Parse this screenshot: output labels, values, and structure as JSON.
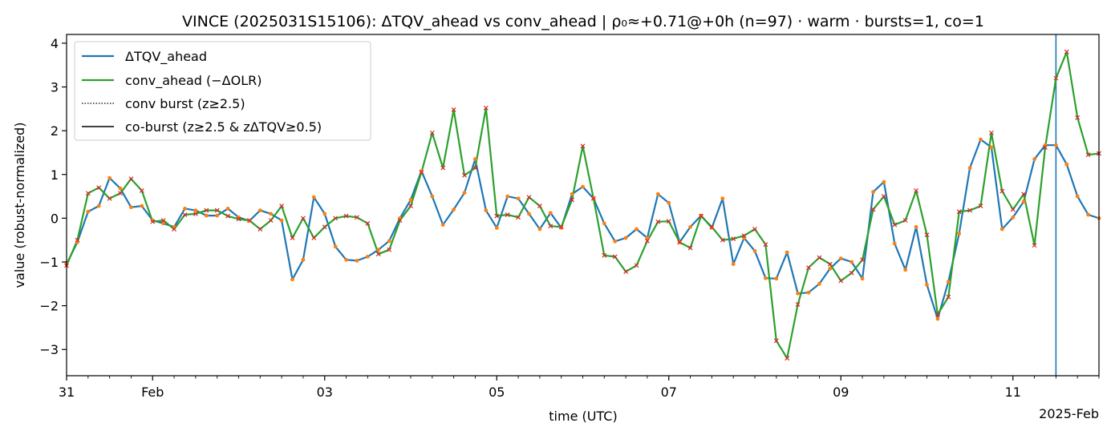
{
  "chart_data": {
    "type": "line",
    "title": "VINCE (2025031S15106): ΔTQV_ahead vs conv_ahead | ρ₀≈+0.71@+0h (n=97) · warm · bursts=1, co=1",
    "xlabel": "time (UTC)",
    "ylabel": "value (robust-normalized)",
    "x_offset_label": "2025-Feb",
    "x_start": "2025-01-31T00:00",
    "x_step_hours": 3,
    "x_ticks": [
      {
        "label": "31",
        "time": "2025-01-31"
      },
      {
        "label": "Feb",
        "time": "2025-02-01"
      },
      {
        "label": "03",
        "time": "2025-02-03"
      },
      {
        "label": "05",
        "time": "2025-02-05"
      },
      {
        "label": "07",
        "time": "2025-02-07"
      },
      {
        "label": "09",
        "time": "2025-02-09"
      },
      {
        "label": "11",
        "time": "2025-02-11"
      }
    ],
    "xlim": [
      "2025-01-31T00:00",
      "2025-02-12T00:00"
    ],
    "ylim": [
      -3.6,
      4.2
    ],
    "y_ticks": [
      4,
      3,
      2,
      1,
      0,
      -1,
      -2,
      -3
    ],
    "y_tick_labels": [
      "4",
      "3",
      "2",
      "1",
      "0",
      "−1",
      "−2",
      "−3"
    ],
    "legend_position": "top-left",
    "legend": [
      {
        "label": "ΔTQV_ahead",
        "style": "line",
        "color": "#1f77b4"
      },
      {
        "label": "conv_ahead (−ΔOLR)",
        "style": "line",
        "color": "#2ca02c"
      },
      {
        "label": "conv burst (z≥2.5)",
        "style": "dotted",
        "color": "#000000"
      },
      {
        "label": "co-burst (z≥2.5 & zΔTQV≥0.5)",
        "style": "solid",
        "color": "#000000"
      }
    ],
    "burst_time": "2025-02-11T12:00",
    "marker_colors": {
      "tqv_marker": "#ff7f0e",
      "conv_marker": "#d62728"
    },
    "series": [
      {
        "name": "ΔTQV_ahead",
        "color": "#1f77b4",
        "values": [
          -1.05,
          -0.55,
          0.15,
          0.28,
          0.92,
          0.68,
          0.25,
          0.28,
          -0.05,
          -0.12,
          -0.2,
          0.22,
          0.18,
          0.06,
          0.06,
          0.22,
          0.02,
          -0.06,
          0.18,
          0.1,
          -0.05,
          -1.4,
          -0.95,
          0.48,
          0.1,
          -0.65,
          -0.95,
          -0.97,
          -0.88,
          -0.72,
          -0.52,
          0.0,
          0.42,
          1.08,
          0.5,
          -0.15,
          0.2,
          0.58,
          1.35,
          0.18,
          -0.22,
          0.5,
          0.45,
          0.1,
          -0.25,
          0.12,
          -0.22,
          0.55,
          0.72,
          0.45,
          -0.12,
          -0.53,
          -0.45,
          -0.25,
          -0.45,
          0.55,
          0.35,
          -0.55,
          -0.2,
          0.06,
          -0.22,
          0.45,
          -1.05,
          -0.45,
          -0.75,
          -1.37,
          -1.38,
          -0.78,
          -1.72,
          -1.7,
          -1.5,
          -1.15,
          -0.92,
          -1.0,
          -1.38,
          0.6,
          0.83,
          -0.58,
          -1.18,
          -0.2,
          -1.52,
          -2.3,
          -1.45,
          -0.35,
          1.15,
          1.8,
          1.62,
          -0.25,
          0.02,
          0.38,
          1.35,
          1.67,
          1.67,
          1.23,
          0.5,
          0.08,
          0.0
        ]
      },
      {
        "name": "conv_ahead (−ΔOLR)",
        "color": "#2ca02c",
        "values": [
          -1.08,
          -0.5,
          0.57,
          0.7,
          0.45,
          0.57,
          0.9,
          0.63,
          -0.08,
          -0.05,
          -0.25,
          0.08,
          0.1,
          0.18,
          0.18,
          0.05,
          -0.02,
          -0.05,
          -0.25,
          -0.05,
          0.28,
          -0.45,
          0.0,
          -0.45,
          -0.2,
          0.0,
          0.05,
          0.02,
          -0.12,
          -0.82,
          -0.72,
          -0.05,
          0.28,
          1.05,
          1.95,
          1.15,
          2.48,
          0.98,
          1.15,
          2.52,
          0.05,
          0.08,
          0.02,
          0.48,
          0.28,
          -0.18,
          -0.2,
          0.42,
          1.65,
          0.45,
          -0.85,
          -0.88,
          -1.22,
          -1.08,
          -0.52,
          -0.08,
          -0.07,
          -0.55,
          -0.68,
          0.05,
          -0.2,
          -0.5,
          -0.47,
          -0.4,
          -0.25,
          -0.6,
          -2.8,
          -3.2,
          -1.97,
          -1.13,
          -0.9,
          -1.05,
          -1.43,
          -1.25,
          -0.95,
          0.2,
          0.5,
          -0.15,
          -0.05,
          0.63,
          -0.38,
          -2.2,
          -1.8,
          0.15,
          0.18,
          0.28,
          1.95,
          0.62,
          0.2,
          0.55,
          -0.62,
          1.62,
          3.2,
          3.8,
          2.3,
          1.45,
          1.48
        ]
      }
    ]
  }
}
